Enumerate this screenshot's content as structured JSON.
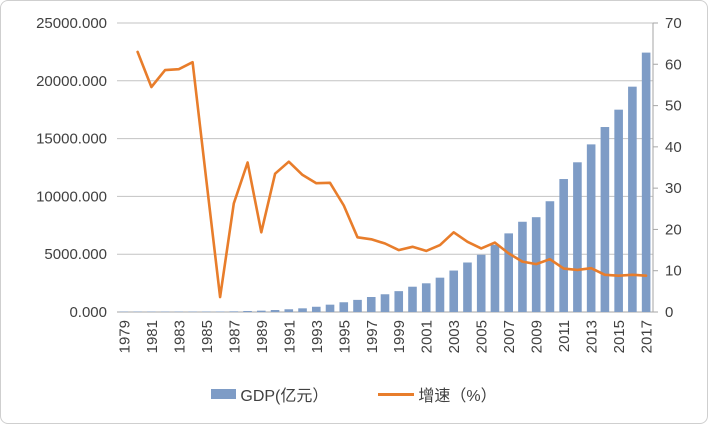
{
  "chart_data": {
    "type": "bar",
    "subtype": "combo-bar-line-dual-axis",
    "title": "",
    "xlabel": "",
    "ylabel_left": "",
    "ylabel_right": "",
    "grid": true,
    "legend_position": "bottom",
    "categories": [
      1979,
      1980,
      1981,
      1982,
      1983,
      1984,
      1985,
      1986,
      1987,
      1988,
      1989,
      1990,
      1991,
      1992,
      1993,
      1994,
      1995,
      1996,
      1997,
      1998,
      1999,
      2000,
      2001,
      2002,
      2003,
      2004,
      2005,
      2006,
      2007,
      2008,
      2009,
      2010,
      2011,
      2012,
      2013,
      2014,
      2015,
      2016,
      2017
    ],
    "series": [
      {
        "name": "GDP(亿元）",
        "type": "bar",
        "axis": "left",
        "color": "#7E9CC6",
        "values": [
          1.97,
          2.7,
          4.95,
          8.36,
          13.12,
          23.42,
          39.02,
          41.62,
          55.95,
          87.0,
          115.0,
          171.7,
          236.7,
          317.3,
          453.1,
          634.7,
          842.8,
          1048.5,
          1297.4,
          1534.7,
          1804.0,
          2187.5,
          2482.5,
          2969.5,
          3585.7,
          4282.1,
          4950.9,
          5813.6,
          6801.6,
          7806.5,
          8201.2,
          9581.5,
          11502.1,
          12950.1,
          14500.2,
          16001.9,
          17502.9,
          19492.6,
          22438.4
        ]
      },
      {
        "name": "增速（%）",
        "type": "line",
        "axis": "right",
        "color": "#E87D2B",
        "values": [
          null,
          63.0,
          54.5,
          58.6,
          58.8,
          60.5,
          32.0,
          3.6,
          26.3,
          36.2,
          19.3,
          33.5,
          36.4,
          33.2,
          31.2,
          31.3,
          25.8,
          18.1,
          17.6,
          16.6,
          15.0,
          15.8,
          14.8,
          16.2,
          19.3,
          17.0,
          15.4,
          16.8,
          14.2,
          12.2,
          11.6,
          12.8,
          10.5,
          10.2,
          10.6,
          9.0,
          8.8,
          9.0,
          8.8
        ]
      }
    ],
    "left_axis": {
      "min": 0,
      "max": 25000,
      "tick_interval": 5000,
      "tick_labels": [
        "0.000",
        "5000.000",
        "10000.000",
        "15000.000",
        "20000.000",
        "25000.000"
      ]
    },
    "right_axis": {
      "min": 0,
      "max": 70,
      "tick_interval": 10,
      "tick_labels": [
        "0",
        "10",
        "20",
        "30",
        "40",
        "50",
        "60",
        "70"
      ]
    },
    "x_axis": {
      "tick_labels": [
        "1979",
        "1981",
        "1983",
        "1985",
        "1987",
        "1989",
        "1991",
        "1993",
        "1995",
        "1997",
        "1999",
        "2001",
        "2003",
        "2005",
        "2007",
        "2009",
        "2011",
        "2013",
        "2015",
        "2017"
      ],
      "label_rotation": -90
    }
  },
  "colors": {
    "bar_fill": "#7E9CC6",
    "line_stroke": "#E87D2B",
    "gridline": "#C3C3C3",
    "axis_line": "#A6A6A6",
    "axis_text": "#404040",
    "frame_border": "#CFCFCF",
    "background": "#FFFFFF"
  }
}
